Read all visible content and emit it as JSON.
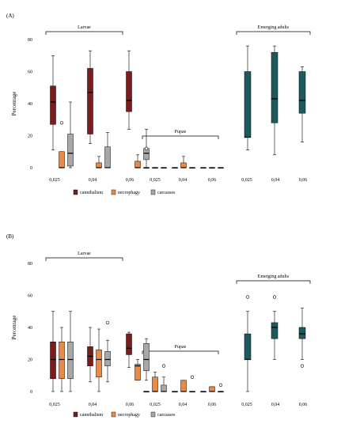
{
  "chart_data": [
    {
      "type": "boxplot",
      "panel": "(A)",
      "ylabel": "Percentage",
      "ylim": [
        0,
        80
      ],
      "yticks": [
        0,
        20,
        40,
        60,
        80
      ],
      "xticks": [
        "0,025",
        "0,04",
        "0,06",
        "0,025",
        "0,04",
        "0,06",
        "0,025",
        "0,04",
        "0,06"
      ],
      "groups": [
        {
          "label": "Larvae",
          "concentrations": [
            "0,025",
            "0,04",
            "0,06"
          ]
        },
        {
          "label": "Pupae",
          "concentrations": [
            "0,025",
            "0,04",
            "0,06"
          ]
        },
        {
          "label": "Emerging adults",
          "concentrations": [
            "0,025",
            "0,04",
            "0,06"
          ]
        }
      ],
      "legend": [
        "cannibalism",
        "necrophagy",
        "carcasses"
      ],
      "colors": {
        "cannibalism": "#7b1d1d",
        "necrophagy": "#e98a45",
        "carcasses": "#a8a8a8",
        "emerging": "#1d5a5e"
      },
      "boxes": [
        {
          "group": "Larvae",
          "x": "0,025",
          "series": "cannibalism",
          "min": 11,
          "q1": 27,
          "median": 41,
          "q3": 51,
          "max": 70,
          "outliers": []
        },
        {
          "group": "Larvae",
          "x": "0,025",
          "series": "necrophagy",
          "min": 0,
          "q1": 0,
          "median": 0,
          "q3": 10,
          "max": 10,
          "outliers": [
            28
          ]
        },
        {
          "group": "Larvae",
          "x": "0,025",
          "series": "carcasses",
          "min": 0,
          "q1": 1,
          "median": 9,
          "q3": 21,
          "max": 41,
          "outliers": []
        },
        {
          "group": "Larvae",
          "x": "0,04",
          "series": "cannibalism",
          "min": 15,
          "q1": 21,
          "median": 47,
          "q3": 62,
          "max": 73,
          "outliers": []
        },
        {
          "group": "Larvae",
          "x": "0,04",
          "series": "necrophagy",
          "min": 0,
          "q1": 0,
          "median": 0,
          "q3": 3,
          "max": 7,
          "outliers": []
        },
        {
          "group": "Larvae",
          "x": "0,04",
          "series": "carcasses",
          "min": 0,
          "q1": 0,
          "median": 0,
          "q3": 13,
          "max": 22,
          "outliers": []
        },
        {
          "group": "Larvae",
          "x": "0,06",
          "series": "cannibalism",
          "min": 24,
          "q1": 35,
          "median": 42,
          "q3": 60,
          "max": 73,
          "outliers": []
        },
        {
          "group": "Larvae",
          "x": "0,06",
          "series": "necrophagy",
          "min": 0,
          "q1": 0,
          "median": 0,
          "q3": 4,
          "max": 8,
          "outliers": []
        },
        {
          "group": "Larvae",
          "x": "0,06",
          "series": "carcasses",
          "min": 0,
          "q1": 5,
          "median": 9,
          "q3": 12,
          "max": 24,
          "outliers": []
        },
        {
          "group": "Pupae",
          "x": "0,025",
          "series": "cannibalism",
          "min": 0,
          "q1": 0,
          "median": 0,
          "q3": 0,
          "max": 0,
          "outliers": [
            12
          ]
        },
        {
          "group": "Pupae",
          "x": "0,025",
          "series": "necrophagy",
          "min": 0,
          "q1": 0,
          "median": 0,
          "q3": 0,
          "max": 0,
          "outliers": []
        },
        {
          "group": "Pupae",
          "x": "0,025",
          "series": "carcasses",
          "min": 0,
          "q1": 0,
          "median": 0,
          "q3": 0,
          "max": 0,
          "outliers": []
        },
        {
          "group": "Pupae",
          "x": "0,04",
          "series": "cannibalism",
          "min": 0,
          "q1": 0,
          "median": 0,
          "q3": 0,
          "max": 0,
          "outliers": []
        },
        {
          "group": "Pupae",
          "x": "0,04",
          "series": "necrophagy",
          "min": 0,
          "q1": 0,
          "median": 0,
          "q3": 3,
          "max": 7,
          "outliers": []
        },
        {
          "group": "Pupae",
          "x": "0,04",
          "series": "carcasses",
          "min": 0,
          "q1": 0,
          "median": 0,
          "q3": 0,
          "max": 0,
          "outliers": []
        },
        {
          "group": "Pupae",
          "x": "0,06",
          "series": "cannibalism",
          "min": 0,
          "q1": 0,
          "median": 0,
          "q3": 0,
          "max": 0,
          "outliers": []
        },
        {
          "group": "Pupae",
          "x": "0,06",
          "series": "necrophagy",
          "min": 0,
          "q1": 0,
          "median": 0,
          "q3": 0,
          "max": 0,
          "outliers": []
        },
        {
          "group": "Pupae",
          "x": "0,06",
          "series": "carcasses",
          "min": 0,
          "q1": 0,
          "median": 0,
          "q3": 0,
          "max": 0,
          "outliers": []
        },
        {
          "group": "Emerging adults",
          "x": "0,025",
          "series": "emerging",
          "min": 11,
          "q1": 19,
          "median": 19,
          "q3": 60,
          "max": 76,
          "outliers": []
        },
        {
          "group": "Emerging adults",
          "x": "0,04",
          "series": "emerging",
          "min": 8,
          "q1": 28,
          "median": 43,
          "q3": 72,
          "max": 76,
          "outliers": []
        },
        {
          "group": "Emerging adults",
          "x": "0,06",
          "series": "emerging",
          "min": 16,
          "q1": 34,
          "median": 42,
          "q3": 60,
          "max": 63,
          "outliers": []
        }
      ]
    },
    {
      "type": "boxplot",
      "panel": "(B)",
      "ylabel": "Percentage",
      "ylim": [
        0,
        80
      ],
      "yticks": [
        0,
        20,
        40,
        60,
        80
      ],
      "xticks": [
        "0,025",
        "0,04",
        "0,06",
        "0,025",
        "0,04",
        "0,06",
        "0,025",
        "0,04",
        "0,06"
      ],
      "groups": [
        {
          "label": "Larvae",
          "concentrations": [
            "0,025",
            "0,04",
            "0,06"
          ]
        },
        {
          "label": "Pupae",
          "concentrations": [
            "0,025",
            "0,04",
            "0,06"
          ]
        },
        {
          "label": "Emerging adults",
          "concentrations": [
            "0,025",
            "0,04",
            "0,06"
          ]
        }
      ],
      "legend": [
        "cannibalism",
        "necrophagy",
        "carcasses"
      ],
      "colors": {
        "cannibalism": "#7b1d1d",
        "necrophagy": "#e98a45",
        "carcasses": "#a8a8a8",
        "emerging": "#1d5a5e"
      },
      "boxes": [
        {
          "group": "Larvae",
          "x": "0,025",
          "series": "cannibalism",
          "min": 0,
          "q1": 8,
          "median": 20,
          "q3": 31,
          "max": 50,
          "outliers": []
        },
        {
          "group": "Larvae",
          "x": "0,025",
          "series": "necrophagy",
          "min": 0,
          "q1": 8,
          "median": 20,
          "q3": 31,
          "max": 40,
          "outliers": []
        },
        {
          "group": "Larvae",
          "x": "0,025",
          "series": "carcasses",
          "min": 0,
          "q1": 8,
          "median": 20,
          "q3": 31,
          "max": 50,
          "outliers": []
        },
        {
          "group": "Larvae",
          "x": "0,04",
          "series": "cannibalism",
          "min": 6,
          "q1": 16,
          "median": 22,
          "q3": 28,
          "max": 40,
          "outliers": []
        },
        {
          "group": "Larvae",
          "x": "0,04",
          "series": "necrophagy",
          "min": 0,
          "q1": 9,
          "median": 20,
          "q3": 26,
          "max": 39,
          "outliers": []
        },
        {
          "group": "Larvae",
          "x": "0,04",
          "series": "carcasses",
          "min": 6,
          "q1": 16,
          "median": 20,
          "q3": 25,
          "max": 32,
          "outliers": [
            43
          ]
        },
        {
          "group": "Larvae",
          "x": "0,06",
          "series": "cannibalism",
          "min": 15,
          "q1": 23,
          "median": 27,
          "q3": 36,
          "max": 37,
          "outliers": []
        },
        {
          "group": "Larvae",
          "x": "0,06",
          "series": "necrophagy",
          "min": 7,
          "q1": 7,
          "median": 16,
          "q3": 17,
          "max": 20,
          "outliers": []
        },
        {
          "group": "Larvae",
          "x": "0,06",
          "series": "carcasses",
          "min": 7,
          "q1": 13,
          "median": 20,
          "q3": 30,
          "max": 33,
          "outliers": []
        },
        {
          "group": "Pupae",
          "x": "0,025",
          "series": "cannibalism",
          "min": 0,
          "q1": 0,
          "median": 0,
          "q3": 0,
          "max": 0,
          "outliers": []
        },
        {
          "group": "Pupae",
          "x": "0,025",
          "series": "necrophagy",
          "min": 0,
          "q1": 0,
          "median": 0,
          "q3": 9,
          "max": 12,
          "outliers": []
        },
        {
          "group": "Pupae",
          "x": "0,025",
          "series": "carcasses",
          "min": 0,
          "q1": 0,
          "median": 0,
          "q3": 4,
          "max": 9,
          "outliers": [
            16
          ]
        },
        {
          "group": "Pupae",
          "x": "0,04",
          "series": "cannibalism",
          "min": 0,
          "q1": 0,
          "median": 0,
          "q3": 0,
          "max": 0,
          "outliers": []
        },
        {
          "group": "Pupae",
          "x": "0,04",
          "series": "necrophagy",
          "min": 0,
          "q1": 0,
          "median": 0,
          "q3": 7,
          "max": 7,
          "outliers": []
        },
        {
          "group": "Pupae",
          "x": "0,04",
          "series": "carcasses",
          "min": 0,
          "q1": 0,
          "median": 0,
          "q3": 0,
          "max": 0,
          "outliers": [
            9
          ]
        },
        {
          "group": "Pupae",
          "x": "0,06",
          "series": "cannibalism",
          "min": 0,
          "q1": 0,
          "median": 0,
          "q3": 0,
          "max": 0,
          "outliers": []
        },
        {
          "group": "Pupae",
          "x": "0,06",
          "series": "necrophagy",
          "min": 0,
          "q1": 0,
          "median": 0,
          "q3": 3,
          "max": 3,
          "outliers": []
        },
        {
          "group": "Pupae",
          "x": "0,06",
          "series": "carcasses",
          "min": 0,
          "q1": 0,
          "median": 0,
          "q3": 0,
          "max": 0,
          "outliers": [
            4
          ]
        },
        {
          "group": "Emerging adults",
          "x": "0,025",
          "series": "emerging",
          "min": 0,
          "q1": 20,
          "median": 20,
          "q3": 36,
          "max": 50,
          "outliers": [
            59
          ]
        },
        {
          "group": "Emerging adults",
          "x": "0,04",
          "series": "emerging",
          "min": 20,
          "q1": 33,
          "median": 40,
          "q3": 43,
          "max": 50,
          "outliers": [
            59
          ]
        },
        {
          "group": "Emerging adults",
          "x": "0,06",
          "series": "emerging",
          "min": 20,
          "q1": 33,
          "median": 36,
          "q3": 40,
          "max": 52,
          "outliers": [
            16
          ]
        }
      ]
    }
  ]
}
